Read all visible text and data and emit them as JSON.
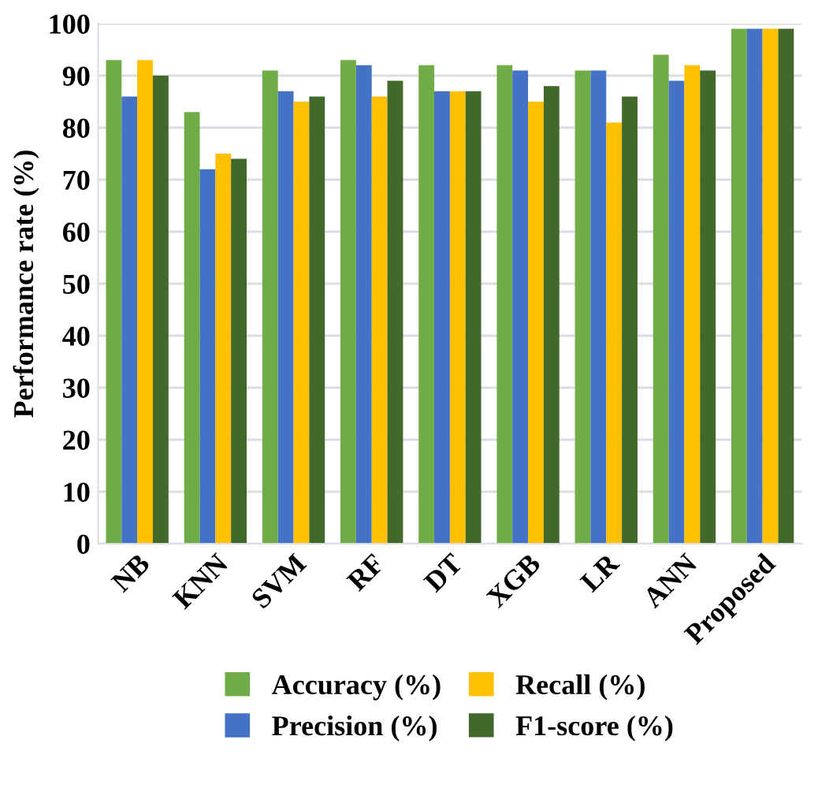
{
  "chart_data": {
    "type": "bar",
    "ylabel": "Performance rate (%)",
    "categories": [
      "NB",
      "KNN",
      "SVM",
      "RF",
      "DT",
      "XGB",
      "LR",
      "ANN",
      "Proposed"
    ],
    "series": [
      {
        "name": "Accuracy (%)",
        "color": "#70ad47",
        "values": [
          93,
          83,
          91,
          93,
          92,
          92,
          91,
          94,
          99
        ]
      },
      {
        "name": "Precision (%)",
        "color": "#4472c4",
        "values": [
          86,
          72,
          87,
          92,
          87,
          91,
          91,
          89,
          99
        ]
      },
      {
        "name": "Recall (%)",
        "color": "#ffc000",
        "values": [
          93,
          75,
          85,
          86,
          87,
          85,
          81,
          92,
          99
        ]
      },
      {
        "name": "F1-score (%)",
        "color": "#43682b",
        "values": [
          90,
          74,
          86,
          89,
          87,
          88,
          86,
          91,
          99
        ]
      }
    ],
    "ylim": [
      0,
      100
    ],
    "yticks": [
      0,
      10,
      20,
      30,
      40,
      50,
      60,
      70,
      80,
      90,
      100
    ],
    "grid": "y",
    "legend": "bottom"
  }
}
